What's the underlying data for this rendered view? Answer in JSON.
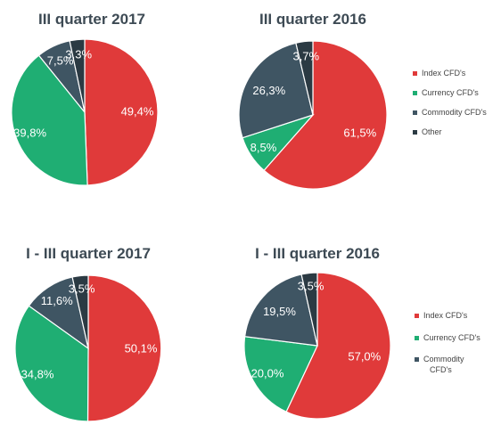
{
  "colors": {
    "index": "#e03a3a",
    "currency": "#1fae73",
    "commodity": "#3f5563",
    "other": "#2b3a43"
  },
  "legends": [
    {
      "items": [
        {
          "label": "Index CFD's",
          "color": "#e03a3a"
        },
        {
          "label": "Currency CFD's",
          "color": "#1fae73"
        },
        {
          "label": "Commodity CFD's",
          "color": "#3f5563"
        },
        {
          "label": "Other",
          "color": "#2b3a43"
        }
      ]
    },
    {
      "items": [
        {
          "label": "Index CFD's",
          "color": "#e03a3a"
        },
        {
          "label": "Currency CFD's",
          "color": "#1fae73"
        },
        {
          "label": [
            "Commodity",
            "CFD's"
          ],
          "color": "#3f5563"
        }
      ]
    }
  ],
  "chart_data": [
    {
      "type": "pie",
      "title": "III quarter 2017",
      "slices": [
        {
          "category": "Index CFD's",
          "value": 49.4,
          "label": "49,4%",
          "color": "#e03a3a"
        },
        {
          "category": "Currency CFD's",
          "value": 39.8,
          "label": "39,8%",
          "color": "#1fae73"
        },
        {
          "category": "Commodity CFD's",
          "value": 7.5,
          "label": "7,5%",
          "color": "#3f5563"
        },
        {
          "category": "Other",
          "value": 3.3,
          "label": "3,3%",
          "color": "#2b3a43"
        }
      ]
    },
    {
      "type": "pie",
      "title": "III quarter 2016",
      "slices": [
        {
          "category": "Index CFD's",
          "value": 61.5,
          "label": "61,5%",
          "color": "#e03a3a"
        },
        {
          "category": "Currency CFD's",
          "value": 8.5,
          "label": "8,5%",
          "color": "#1fae73"
        },
        {
          "category": "Commodity CFD's",
          "value": 26.3,
          "label": "26,3%",
          "color": "#3f5563"
        },
        {
          "category": "Other",
          "value": 3.7,
          "label": "3,7%",
          "color": "#2b3a43"
        }
      ]
    },
    {
      "type": "pie",
      "title": "I - III quarter 2017",
      "slices": [
        {
          "category": "Index CFD's",
          "value": 50.1,
          "label": "50,1%",
          "color": "#e03a3a"
        },
        {
          "category": "Currency CFD's",
          "value": 34.8,
          "label": "34,8%",
          "color": "#1fae73"
        },
        {
          "category": "Commodity CFD's",
          "value": 11.6,
          "label": "11,6%",
          "color": "#3f5563"
        },
        {
          "category": "Other",
          "value": 3.5,
          "label": "3,5%",
          "color": "#2b3a43"
        }
      ]
    },
    {
      "type": "pie",
      "title": "I - III quarter 2016",
      "slices": [
        {
          "category": "Index CFD's",
          "value": 57.0,
          "label": "57,0%",
          "color": "#e03a3a"
        },
        {
          "category": "Currency CFD's",
          "value": 20.0,
          "label": "20,0%",
          "color": "#1fae73"
        },
        {
          "category": "Commodity CFD's",
          "value": 19.5,
          "label": "19,5%",
          "color": "#3f5563"
        },
        {
          "category": "Other",
          "value": 3.5,
          "label": "3,5%",
          "color": "#2b3a43"
        }
      ]
    }
  ]
}
